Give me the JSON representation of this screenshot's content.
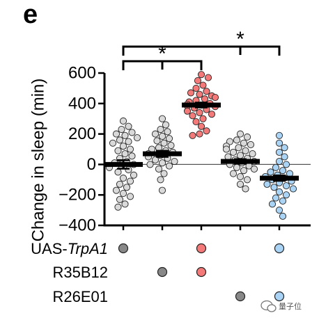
{
  "panel_label": "e",
  "watermark": {
    "text": "量子位",
    "icon": "wechat-chat-bubble-icon"
  },
  "chart_data": {
    "type": "scatter",
    "title": "",
    "xlabel": "",
    "ylabel": "Change in sleep (min)",
    "ylim": [
      -400,
      600
    ],
    "yticks": [
      600,
      400,
      200,
      0,
      -200,
      -400
    ],
    "tick_labels": [
      "600",
      "400",
      "200",
      "0",
      "−200",
      "−400"
    ],
    "zero_line": true,
    "grid": false,
    "legend": "none",
    "groups": [
      {
        "color": "#d9d9d9",
        "mean": 0,
        "sem": 28,
        "values": [
          285,
          250,
          230,
          210,
          200,
          190,
          175,
          160,
          150,
          140,
          120,
          100,
          90,
          70,
          55,
          40,
          20,
          10,
          0,
          -10,
          -20,
          -35,
          -50,
          -70,
          -90,
          -110,
          -130,
          -150,
          -170,
          -190,
          -210,
          -230,
          -260,
          -280
        ]
      },
      {
        "color": "#d9d9d9",
        "mean": 70,
        "sem": 20,
        "values": [
          300,
          260,
          230,
          215,
          200,
          185,
          170,
          155,
          140,
          125,
          110,
          100,
          90,
          80,
          70,
          60,
          50,
          40,
          30,
          20,
          10,
          0,
          -10,
          -30,
          -60,
          -100,
          -170
        ]
      },
      {
        "color": "#f47a7a",
        "mean": 390,
        "sem": 16,
        "values": [
          590,
          570,
          550,
          520,
          500,
          480,
          470,
          460,
          450,
          440,
          430,
          420,
          410,
          400,
          395,
          390,
          385,
          380,
          370,
          360,
          350,
          340,
          330,
          320,
          300,
          280,
          250,
          220,
          200,
          190
        ]
      },
      {
        "color": "#d9d9d9",
        "mean": 20,
        "sem": 15,
        "values": [
          200,
          180,
          160,
          150,
          140,
          130,
          120,
          110,
          100,
          90,
          80,
          70,
          60,
          50,
          40,
          30,
          20,
          10,
          0,
          -10,
          -20,
          -30,
          -40,
          -60,
          -80,
          -100,
          -130,
          -160
        ]
      },
      {
        "color": "#aad4f5",
        "mean": -90,
        "sem": 18,
        "values": [
          190,
          140,
          110,
          80,
          50,
          20,
          0,
          -20,
          -40,
          -50,
          -60,
          -70,
          -80,
          -90,
          -100,
          -110,
          -120,
          -130,
          -140,
          -150,
          -160,
          -180,
          -200,
          -220,
          -240,
          -260,
          -300,
          -340
        ]
      }
    ],
    "genotype_rows": [
      {
        "label_prefix": "UAS-",
        "label_italic": "TrpA1",
        "markers": [
          {
            "group": 0,
            "color": "#888888"
          },
          {
            "group": 2,
            "color": "#f47a7a"
          },
          {
            "group": 4,
            "color": "#aad4f5"
          }
        ]
      },
      {
        "label_prefix": "R35B12",
        "label_italic": "",
        "markers": [
          {
            "group": 1,
            "color": "#888888"
          },
          {
            "group": 2,
            "color": "#f47a7a"
          }
        ]
      },
      {
        "label_prefix": "R26E01",
        "label_italic": "",
        "markers": [
          {
            "group": 3,
            "color": "#888888"
          },
          {
            "group": 4,
            "color": "#aad4f5"
          }
        ]
      }
    ],
    "significance": [
      {
        "label": "*",
        "from_group": 0,
        "to_group": 2,
        "mid_group": 1
      },
      {
        "label": "*",
        "from_group": 0,
        "to_group": 4,
        "mid_group": 3
      }
    ]
  }
}
